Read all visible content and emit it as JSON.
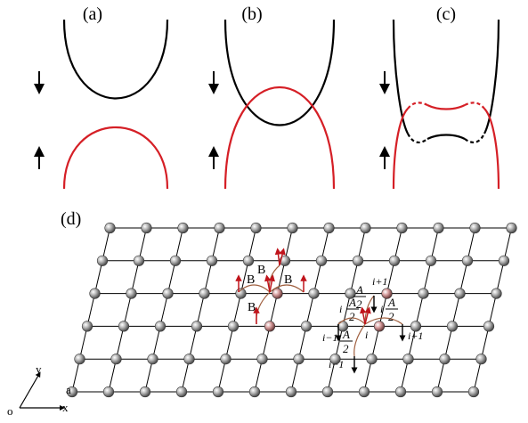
{
  "panels": {
    "a": {
      "label": "(a)"
    },
    "b": {
      "label": "(b)"
    },
    "c": {
      "label": "(c)"
    },
    "d": {
      "label": "(d)"
    }
  },
  "colors": {
    "spin_down_band": "#000000",
    "spin_up_band": "#d51f26",
    "lattice_line": "#000000",
    "atom_fill": "#9a9a9a",
    "highlight_atom": "#e6b4b4",
    "arrow_red": "#c0141c",
    "bond_arc": "#a06040"
  },
  "lattice": {
    "rows": 6,
    "cols": 12,
    "axes": {
      "origin": "o",
      "x": "x",
      "y": "y",
      "spacing": "a"
    }
  },
  "labels": {
    "B": "B",
    "i": "i",
    "i_plus_1": "i+1",
    "i_minus_1": "i−1",
    "i_prefix": "i",
    "A": "A",
    "two": "2"
  }
}
